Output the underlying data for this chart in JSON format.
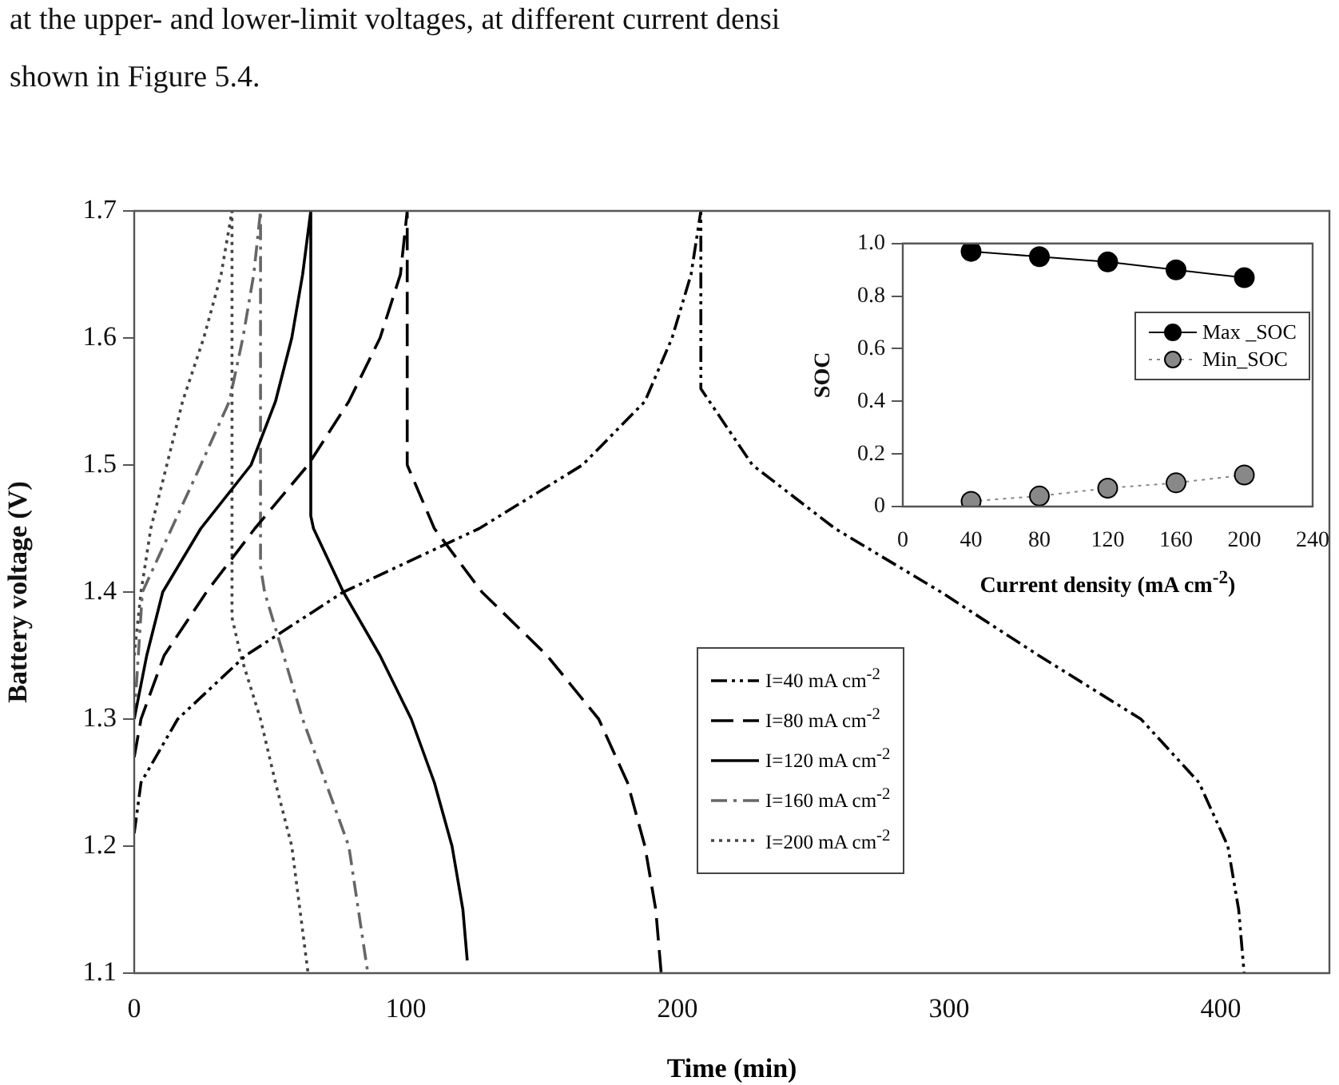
{
  "chart_data": [
    {
      "type": "line",
      "xlabel": "Time (min)",
      "ylabel": "Battery voltage (V)",
      "xlim": [
        0,
        440
      ],
      "xticks": [
        0,
        100,
        200,
        300,
        400
      ],
      "ylim": [
        1.1,
        1.7
      ],
      "yticks": [
        1.1,
        1.2,
        1.3,
        1.4,
        1.5,
        1.6,
        1.7
      ],
      "legend": "bottom",
      "marker": "none",
      "annotations": [
        "at the upper- and lower-limit voltages, at different current densi",
        "shown in Figure 5.4."
      ],
      "series": [
        {
          "name": "I=40 mA cm$^{-2}$",
          "color": "#000000",
          "line_style": "dashdotdot",
          "x": [
            0,
            2.5,
            16,
            41,
            77,
            127,
            165,
            188,
            198,
            205,
            208.6,
            208.6,
            227.6,
            258,
            297,
            333,
            370.6,
            392,
            402.6,
            406.6,
            408.6
          ],
          "values": [
            1.21,
            1.25,
            1.3,
            1.35,
            1.4,
            1.45,
            1.5,
            1.55,
            1.6,
            1.65,
            1.7,
            1.56,
            1.5,
            1.45,
            1.4,
            1.35,
            1.3,
            1.25,
            1.2,
            1.15,
            1.1
          ]
        },
        {
          "name": "I=80 mA cm$^{-2}$",
          "color": "#000000",
          "line_style": "dashed",
          "x": [
            0,
            2.5,
            11,
            26.6,
            44.4,
            64,
            79,
            90.5,
            98,
            100.5,
            100.5,
            110.5,
            128,
            152,
            171,
            181.6,
            188,
            192,
            194
          ],
          "values": [
            1.27,
            1.3,
            1.35,
            1.4,
            1.45,
            1.5,
            1.55,
            1.6,
            1.65,
            1.7,
            1.5,
            1.45,
            1.4,
            1.35,
            1.3,
            1.25,
            1.2,
            1.15,
            1.1
          ]
        },
        {
          "name": "I=120 mA cm$^{-2}$",
          "color": "#000000",
          "line_style": "solid",
          "x": [
            0,
            4.6,
            10.5,
            24.5,
            43,
            52,
            58,
            62,
            65,
            65,
            66,
            77,
            90.5,
            102,
            110.5,
            117,
            121,
            122.6
          ],
          "values": [
            1.3,
            1.35,
            1.4,
            1.45,
            1.5,
            1.55,
            1.6,
            1.65,
            1.7,
            1.46,
            1.45,
            1.4,
            1.35,
            1.3,
            1.25,
            1.2,
            1.15,
            1.11
          ]
        },
        {
          "name": "I=160 mA cm$^{-2}$",
          "color": "#666666",
          "line_style": "dashdot",
          "x": [
            0,
            1.5,
            3,
            24.5,
            35,
            40,
            44,
            46.5,
            46.5,
            48,
            62,
            79,
            86
          ],
          "values": [
            1.3,
            1.35,
            1.4,
            1.5,
            1.55,
            1.6,
            1.65,
            1.7,
            1.42,
            1.4,
            1.3,
            1.2,
            1.1
          ]
        },
        {
          "name": "I=200 mA cm$^{-2}$",
          "color": "#444444",
          "line_style": "dotted",
          "x": [
            0,
            2.5,
            6.1,
            12,
            17.8,
            25.6,
            32,
            36,
            36,
            39.2,
            46.5,
            52,
            58,
            64
          ],
          "values": [
            1.35,
            1.4,
            1.45,
            1.5,
            1.55,
            1.6,
            1.65,
            1.7,
            1.38,
            1.35,
            1.3,
            1.25,
            1.2,
            1.1
          ]
        }
      ]
    },
    {
      "type": "line",
      "xlabel": "Current density (mA cm$^{-2}$)",
      "ylabel": "SOC",
      "x": [
        40,
        80,
        120,
        160,
        200
      ],
      "xlim": [
        0,
        240
      ],
      "xticks": [
        0,
        40,
        80,
        120,
        160,
        200,
        240
      ],
      "ylim": [
        0,
        1
      ],
      "yticks": [
        0,
        0.2,
        0.4,
        0.6,
        0.8,
        {
          "value": 1,
          "label": "1.0"
        }
      ],
      "legend": "right",
      "marker": "circle",
      "series": [
        {
          "name": "Max _SOC",
          "color": "#000000",
          "line_style": "solid",
          "values": [
            0.97,
            0.95,
            0.93,
            0.9,
            0.87
          ]
        },
        {
          "name": "Min_SOC",
          "color": "#888888",
          "line_style": "dotted",
          "values": [
            0.02,
            0.04,
            0.07,
            0.09,
            0.12
          ]
        }
      ]
    }
  ]
}
